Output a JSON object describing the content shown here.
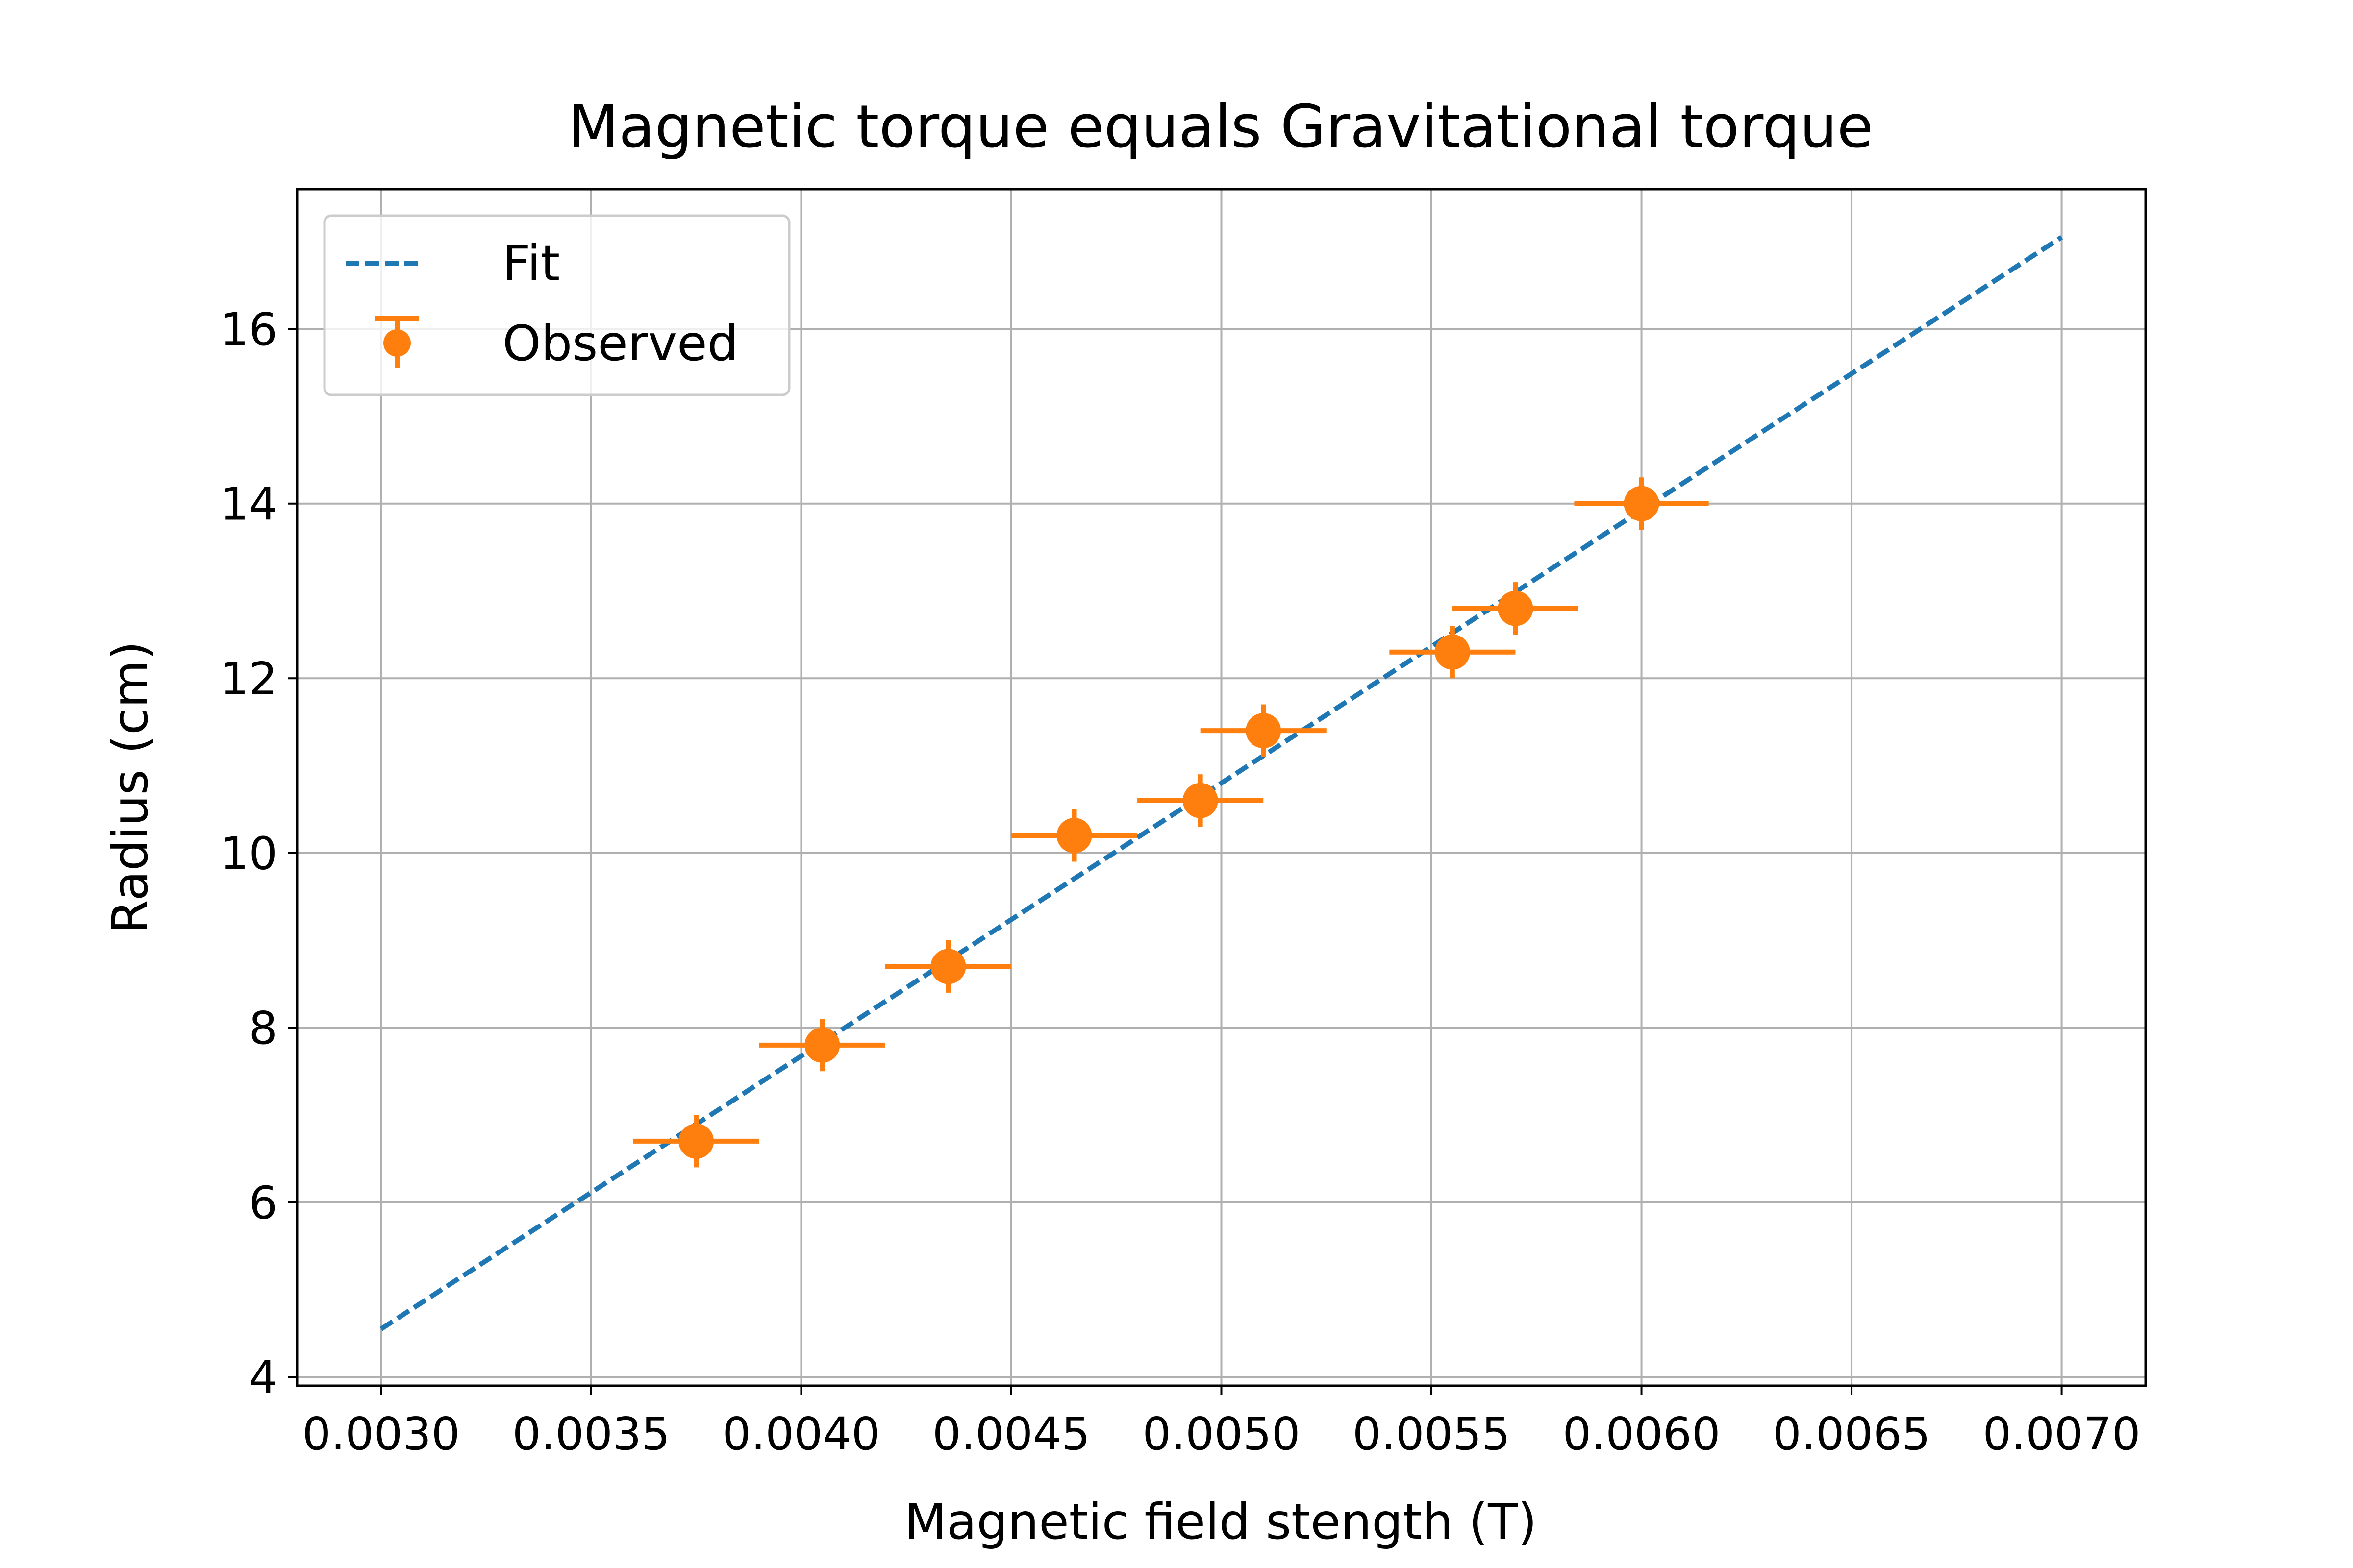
{
  "chart_data": {
    "type": "scatter",
    "title": "Magnetic torque equals Gravitational torque",
    "xlabel": "Magnetic field stength (T)",
    "ylabel": "Radius (cm)",
    "xlim": [
      0.0028,
      0.0072
    ],
    "ylim": [
      3.9,
      17.6
    ],
    "grid": true,
    "legend_position": "top-left",
    "x_ticks": [
      "0.0030",
      "0.0035",
      "0.0040",
      "0.0045",
      "0.0050",
      "0.0055",
      "0.0060",
      "0.0065",
      "0.0070"
    ],
    "y_ticks": [
      "4",
      "6",
      "8",
      "10",
      "12",
      "14",
      "16"
    ],
    "series": [
      {
        "name": "Fit",
        "kind": "line",
        "style": "dashed",
        "color": "#1f77b4",
        "x": [
          0.003,
          0.007
        ],
        "y": [
          4.55,
          17.05
        ]
      },
      {
        "name": "Observed",
        "kind": "errorbar",
        "color": "#ff7f0e",
        "x": [
          0.00375,
          0.00405,
          0.00435,
          0.00465,
          0.00495,
          0.0051,
          0.00555,
          0.0057,
          0.006
        ],
        "y": [
          6.7,
          7.8,
          8.7,
          10.2,
          10.6,
          11.4,
          12.3,
          12.8,
          14.0
        ],
        "xerr": [
          0.00015,
          0.00015,
          0.00015,
          0.00015,
          0.00015,
          0.00015,
          0.00015,
          0.00015,
          0.00016
        ],
        "yerr": [
          0.3,
          0.3,
          0.3,
          0.3,
          0.3,
          0.3,
          0.3,
          0.3,
          0.3
        ]
      }
    ]
  }
}
